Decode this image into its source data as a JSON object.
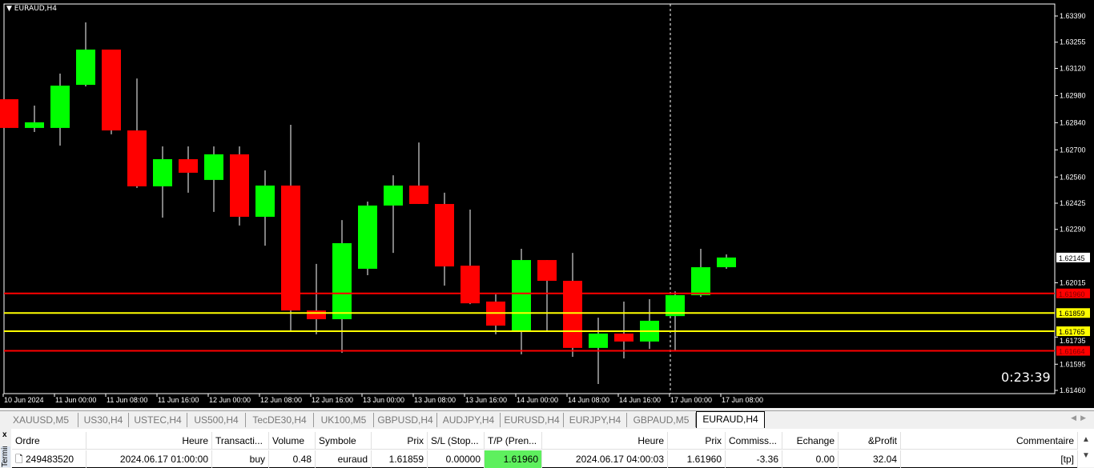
{
  "chart": {
    "symbol": "EURAUD,H4",
    "timer": "0:23:39",
    "colors": {
      "bull": "#00ff00",
      "bear": "#ff0000",
      "sl_line": "#ff0000",
      "entry_line": "#ffff00",
      "background": "#000000"
    },
    "price_ticks": [
      "1.63390",
      "1.63255",
      "1.63120",
      "1.62980",
      "1.62840",
      "1.62700",
      "1.62560",
      "1.62425",
      "1.62290",
      "1.62015",
      "1.61735",
      "1.61595",
      "1.61460"
    ],
    "current_price": "1.62145",
    "levels": [
      {
        "price": "1.61960",
        "color": "#ff0000"
      },
      {
        "price": "1.61859",
        "color": "#ffff00"
      },
      {
        "price": "1.61765",
        "color": "#ffff00"
      },
      {
        "price": "1.61664",
        "color": "#ff0000"
      }
    ],
    "time_labels": [
      "10 Jun 2024",
      "11 Jun 00:00",
      "11 Jun 08:00",
      "11 Jun 16:00",
      "12 Jun 00:00",
      "12 Jun 08:00",
      "12 Jun 16:00",
      "13 Jun 00:00",
      "13 Jun 08:00",
      "13 Jun 16:00",
      "14 Jun 00:00",
      "14 Jun 08:00",
      "14 Jun 16:00",
      "17 Jun 00:00",
      "17 Jun 08:00"
    ],
    "candles": [
      [
        1.62961,
        1.62961,
        1.62813,
        1.62813
      ],
      [
        1.62813,
        1.62928,
        1.62792,
        1.62842
      ],
      [
        1.62813,
        1.63093,
        1.62722,
        1.63031
      ],
      [
        1.63035,
        1.63357,
        1.63027,
        1.63217
      ],
      [
        1.63217,
        1.63217,
        1.6278,
        1.628
      ],
      [
        1.628,
        1.63068,
        1.62504,
        1.62512
      ],
      [
        1.62512,
        1.62718,
        1.62351,
        1.62652
      ],
      [
        1.62652,
        1.62718,
        1.62479,
        1.62582
      ],
      [
        1.62545,
        1.62718,
        1.6238,
        1.62677
      ],
      [
        1.62677,
        1.62718,
        1.6231,
        1.62355
      ],
      [
        1.62355,
        1.62594,
        1.62206,
        1.62516
      ],
      [
        1.62516,
        1.62829,
        1.61761,
        1.61872
      ],
      [
        1.61872,
        1.62112,
        1.61749,
        1.61827
      ],
      [
        1.61827,
        1.62338,
        1.61654,
        1.62219
      ],
      [
        1.62087,
        1.62433,
        1.62054,
        1.62413
      ],
      [
        1.62413,
        1.62569,
        1.62169,
        1.62516
      ],
      [
        1.62516,
        1.62738,
        1.62421,
        1.62421
      ],
      [
        1.62421,
        1.62479,
        1.62,
        1.62099
      ],
      [
        1.62103,
        1.62392,
        1.61905,
        1.61909
      ],
      [
        1.61918,
        1.61955,
        1.61749,
        1.61794
      ],
      [
        1.61769,
        1.6219,
        1.61646,
        1.62132
      ],
      [
        1.62132,
        1.62132,
        1.61769,
        1.62025
      ],
      [
        1.62025,
        1.62169,
        1.61633,
        1.61679
      ],
      [
        1.61679,
        1.61835,
        1.61493,
        1.61753
      ],
      [
        1.61753,
        1.61918,
        1.61625,
        1.61712
      ],
      [
        1.61712,
        1.6193,
        1.61674,
        1.61819
      ],
      [
        1.61843,
        1.61971,
        1.61666,
        1.61951
      ],
      [
        1.61951,
        1.6219,
        1.61942,
        1.62095
      ],
      [
        1.62095,
        1.62161,
        1.62087,
        1.62145
      ]
    ]
  },
  "tabs": [
    "XAUUSD,M5",
    "US30,H4",
    "USTEC,H4",
    "US500,H4",
    "TecDE30,H4",
    "UK100,M5",
    "GBPUSD,H4",
    "AUDJPY,H4",
    "EURUSD,H4",
    "EURJPY,H4",
    "GBPAUD,M5",
    "EURAUD,H4"
  ],
  "active_tab": "EURAUD,H4",
  "terminal": {
    "close": "x",
    "label": "Terminal",
    "headers": [
      "Ordre",
      "Heure",
      "Transacti...",
      "Volume",
      "Symbole",
      "Prix",
      "S/L (Stop...",
      "T/P (Pren...",
      "Heure",
      "Prix",
      "Commiss...",
      "Echange",
      "&Profit",
      "Commentaire"
    ],
    "row": [
      "249483520",
      "2024.06.17 01:00:00",
      "buy",
      "0.48",
      "euraud",
      "1.61859",
      "0.00000",
      "1.61960",
      "2024.06.17 04:00:03",
      "1.61960",
      "-3.36",
      "0.00",
      "32.04",
      "[tp]"
    ]
  }
}
